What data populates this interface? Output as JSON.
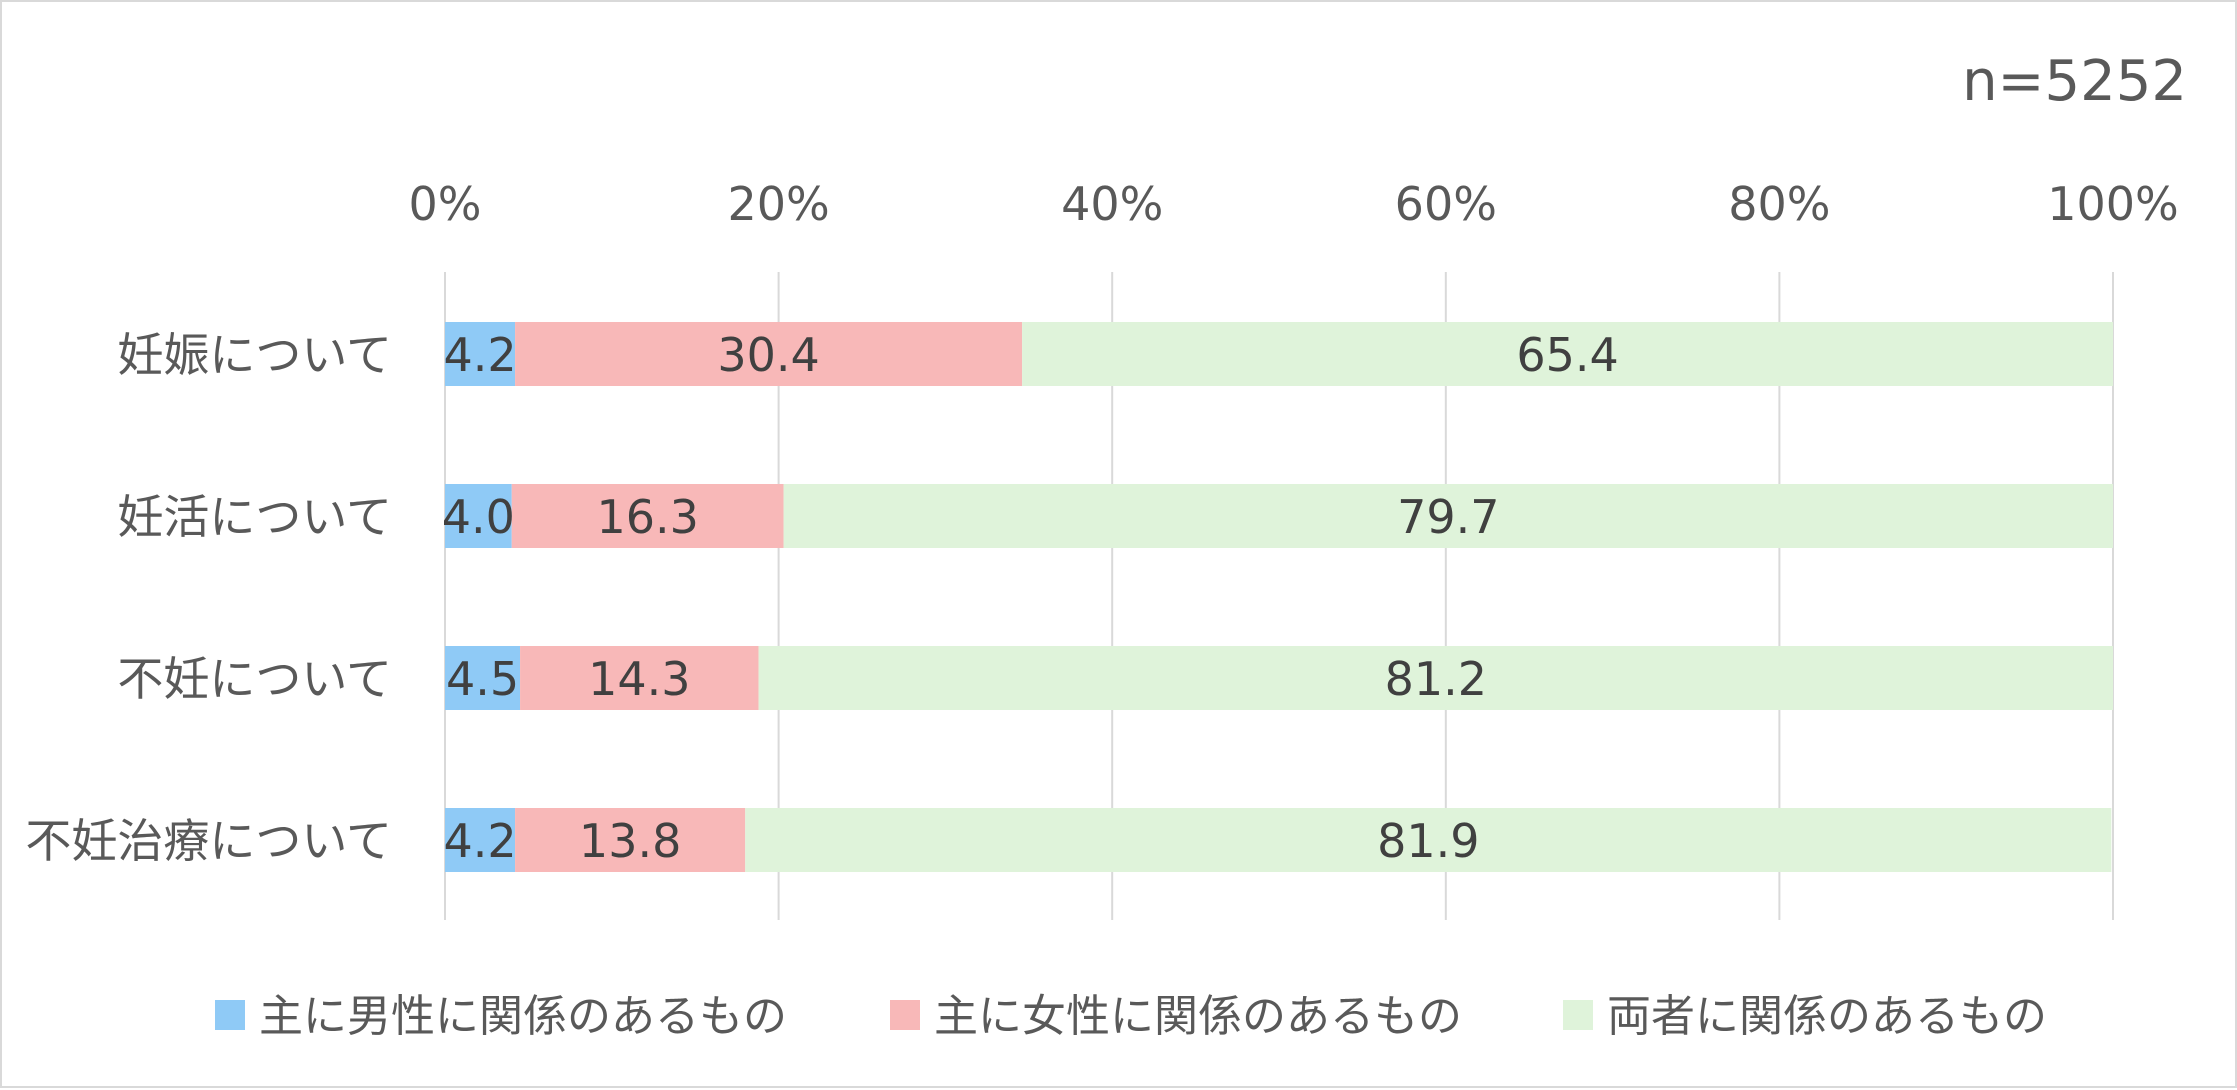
{
  "note": "n=5252",
  "chart_data": {
    "type": "bar",
    "orientation": "horizontal",
    "stacked": "percent",
    "categories": [
      "妊娠について",
      "妊活について",
      "不妊について",
      "不妊治療について"
    ],
    "series": [
      {
        "name": "主に男性に関係のあるもの",
        "color": "#8fcaf6",
        "values": [
          4.2,
          4.0,
          4.5,
          4.2
        ]
      },
      {
        "name": "主に女性に関係のあるもの",
        "color": "#f8b8b8",
        "values": [
          30.4,
          16.3,
          14.3,
          13.8
        ]
      },
      {
        "name": "両者に関係のあるもの",
        "color": "#dff3da",
        "values": [
          65.4,
          79.7,
          81.2,
          81.9
        ]
      }
    ],
    "xlim": [
      0,
      100
    ],
    "x_ticks": [
      "0%",
      "20%",
      "40%",
      "60%",
      "80%",
      "100%"
    ],
    "x_axis_position": "top",
    "grid": true,
    "data_labels": true,
    "legend_position": "bottom"
  }
}
